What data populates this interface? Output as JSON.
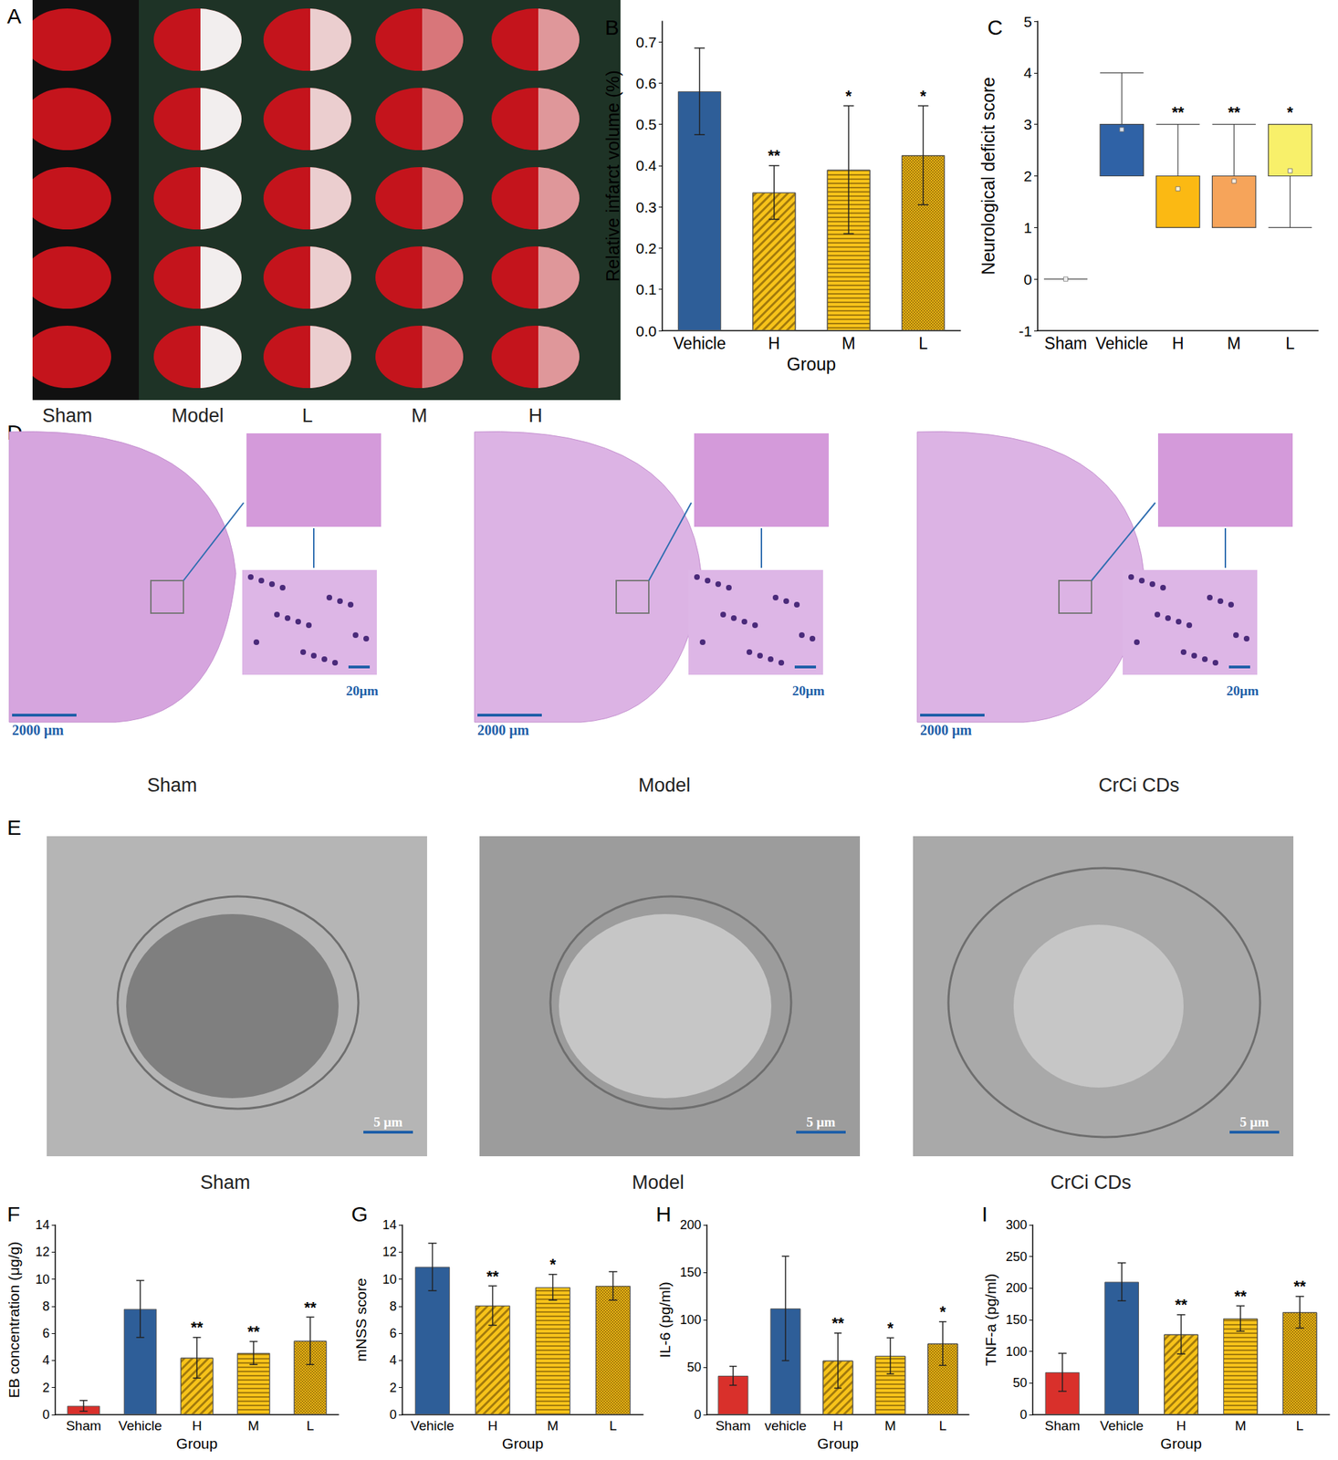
{
  "chart_data": [
    {
      "panel": "B",
      "type": "bar",
      "ylabel": "Relative infarct volume (%)",
      "xlabel": "Group",
      "categories": [
        "Vehicle",
        "H",
        "M",
        "L"
      ],
      "values": [
        0.58,
        0.335,
        0.39,
        0.425
      ],
      "errors": [
        0.105,
        0.065,
        0.155,
        0.12
      ],
      "annotations": [
        null,
        "**",
        "*",
        "*"
      ],
      "colors": [
        "#2e5e98",
        "#f7c31a",
        "#f7c31a",
        "#eab515"
      ],
      "ylim": [
        0,
        0.75
      ],
      "yticks": [
        {
          "value": 0,
          "label": "0.0"
        },
        {
          "value": 0.1,
          "label": "0.1"
        },
        {
          "value": 0.2,
          "label": "0.2"
        },
        {
          "value": 0.3,
          "label": "0.3"
        },
        {
          "value": 0.4,
          "label": "0.4"
        },
        {
          "value": 0.5,
          "label": "0.5"
        },
        {
          "value": 0.6,
          "label": "0.6"
        },
        {
          "value": 0.7,
          "label": "0.7"
        }
      ],
      "grid": false
    },
    {
      "panel": "C",
      "type": "boxplot",
      "ylabel": "Neurological deficit score",
      "categories": [
        "Sham",
        "Vehicle",
        "H",
        "M",
        "L"
      ],
      "boxes": [
        [
          0,
          0,
          0,
          0,
          0
        ],
        [
          2,
          2,
          3,
          3,
          4
        ],
        [
          1,
          1,
          2,
          2,
          3
        ],
        [
          1,
          1,
          2,
          2,
          3
        ],
        [
          1,
          2,
          3,
          3,
          3
        ]
      ],
      "means": [
        0,
        2.9,
        1.75,
        1.9,
        2.1
      ],
      "annotations": [
        null,
        null,
        "**",
        "**",
        "*"
      ],
      "colors": [
        "#888888",
        "#2f62a6",
        "#fbb913",
        "#f6a45a",
        "#f8f06a"
      ],
      "ylim": [
        -1,
        5
      ],
      "yticks": [
        -1,
        0,
        1,
        2,
        3,
        4,
        5
      ],
      "grid": false
    },
    {
      "panel": "F",
      "type": "bar",
      "ylabel": "EB concentration (μg/g)",
      "xlabel": "Group",
      "categories": [
        "Sham",
        "Vehicle",
        "H",
        "M",
        "L"
      ],
      "values": [
        0.65,
        7.8,
        4.2,
        4.55,
        5.45
      ],
      "errors": [
        0.4,
        2.1,
        1.5,
        0.85,
        1.75
      ],
      "annotations": [
        null,
        null,
        "**",
        "**",
        "**"
      ],
      "colors": [
        "#d9302b",
        "#2e5e98",
        "#f7c31a",
        "#f7c31a",
        "#eab515"
      ],
      "ylim": [
        0,
        14
      ],
      "yticks": [
        0,
        2,
        4,
        6,
        8,
        10,
        12,
        14
      ],
      "grid": false
    },
    {
      "panel": "G",
      "type": "bar",
      "ylabel": "mNSS score",
      "xlabel": "Group",
      "categories": [
        "Vehicle",
        "H",
        "M",
        "L"
      ],
      "values": [
        10.9,
        8.05,
        9.4,
        9.5
      ],
      "errors": [
        1.75,
        1.45,
        0.95,
        1.05
      ],
      "annotations": [
        null,
        "**",
        "*",
        null
      ],
      "colors": [
        "#2e5e98",
        "#f7c31a",
        "#f7c31a",
        "#eab515"
      ],
      "ylim": [
        0,
        14
      ],
      "yticks": [
        0,
        2,
        4,
        6,
        8,
        10,
        12,
        14
      ],
      "grid": false
    },
    {
      "panel": "H",
      "type": "bar",
      "ylabel": "IL-6 (pg/ml)",
      "xlabel": "Group",
      "categories": [
        "Sham",
        "vehicle",
        "H",
        "M",
        "L"
      ],
      "values": [
        41,
        112,
        57,
        62,
        75
      ],
      "errors": [
        10,
        55,
        29,
        19,
        23
      ],
      "annotations": [
        null,
        null,
        "**",
        "*",
        "*"
      ],
      "colors": [
        "#d9302b",
        "#2e5e98",
        "#f7c31a",
        "#f7c31a",
        "#eab515"
      ],
      "ylim": [
        0,
        200
      ],
      "yticks": [
        0,
        50,
        100,
        150,
        200
      ],
      "grid": false
    },
    {
      "panel": "I",
      "type": "bar",
      "ylabel": "TNF-a (pg/ml)",
      "xlabel": "Group",
      "categories": [
        "Sham",
        "Vehicle",
        "H",
        "M",
        "L"
      ],
      "values": [
        67,
        210,
        127,
        152,
        162
      ],
      "errors": [
        30,
        30,
        31,
        20,
        25
      ],
      "annotations": [
        null,
        null,
        "**",
        "**",
        "**"
      ],
      "colors": [
        "#d9302b",
        "#2e5e98",
        "#f7c31a",
        "#f7c31a",
        "#eab515"
      ],
      "ylim": [
        0,
        300
      ],
      "yticks": [
        0,
        50,
        100,
        150,
        200,
        250,
        300
      ],
      "grid": false
    }
  ],
  "image_panels": [
    {
      "panel": "A",
      "labels": [
        "Sham",
        "Model",
        "L",
        "M",
        "H"
      ]
    },
    {
      "panel": "D",
      "labels": [
        "Sham",
        "Model",
        "CrCi CDs"
      ],
      "scale_bars": [
        "2000 μm",
        "20μm"
      ]
    },
    {
      "panel": "E",
      "labels": [
        "Sham",
        "Model",
        "CrCi CDs"
      ],
      "scale_bars": [
        "5 μm"
      ]
    }
  ]
}
